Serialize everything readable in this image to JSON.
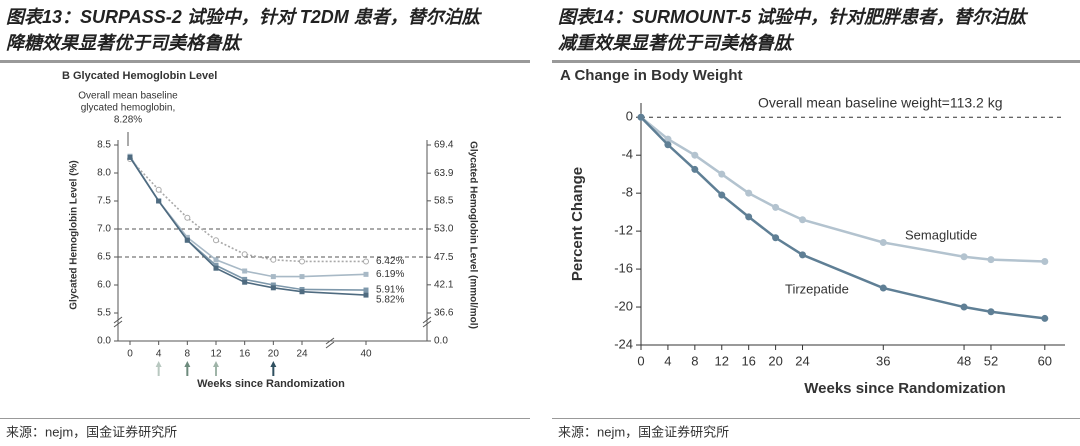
{
  "chart_data": [
    {
      "type": "line",
      "figure_title": [
        "图表13：SURPASS-2 试验中，针对 T2DM 患者，替尔泊肽",
        "降糖效果显著优于司美格鲁肽"
      ],
      "title": "B  Glycated Hemoglobin Level",
      "annotation": [
        "Overall mean baseline",
        "glycated hemoglobin,",
        "8.28%"
      ],
      "xlabel": "Weeks since Randomization",
      "ylabel": "Glycated Hemoglobin Level (%)",
      "y2label": "Glycated Hemoglobin Level (mmol/mol)",
      "source": "来源：nejm，国金证券研究所",
      "x": [
        0,
        4,
        8,
        12,
        16,
        20,
        24,
        40
      ],
      "xticks": [
        0,
        4,
        8,
        12,
        16,
        20,
        24,
        40
      ],
      "ylim": [
        5.5,
        8.5
      ],
      "yticks": [
        8.5,
        {
          "value": 8.0,
          "label": "8.0"
        },
        7.5,
        {
          "value": 7.0,
          "label": "7.0"
        },
        6.5,
        {
          "value": 6.0,
          "label": "6.0"
        },
        5.5
      ],
      "y_break_tick": {
        "value": 0,
        "label": "0.0"
      },
      "y2lim": [
        36.6,
        69.4
      ],
      "y2ticks": [
        69.4,
        63.9,
        58.5,
        {
          "value": 53.0,
          "label": "53.0"
        },
        47.5,
        42.1,
        36.6
      ],
      "y2_break_tick": {
        "value": 0,
        "label": "0.0"
      },
      "hlines": [
        {
          "value": 7.0,
          "label": "7.0"
        },
        6.5
      ],
      "dose_arrows": [
        4,
        8,
        12,
        20
      ],
      "series": [
        {
          "color": "#a9a9a9",
          "dash": true,
          "marker": "circle",
          "values": [
            8.25,
            7.7,
            7.2,
            6.8,
            6.55,
            6.45,
            6.42,
            6.42
          ],
          "value_labels": [
            null,
            null,
            null,
            null,
            null,
            null,
            null,
            "6.42%"
          ]
        },
        {
          "color": "#a8b9c6",
          "marker": "square",
          "values": [
            8.3,
            7.5,
            6.85,
            6.45,
            6.25,
            6.15,
            6.15,
            6.19
          ],
          "value_labels": [
            null,
            null,
            null,
            null,
            null,
            null,
            null,
            "6.19%"
          ]
        },
        {
          "color": "#7e98ab",
          "marker": "square",
          "values": [
            8.28,
            7.5,
            6.8,
            6.35,
            6.1,
            6.0,
            5.92,
            5.91
          ],
          "value_labels": [
            null,
            null,
            null,
            null,
            null,
            null,
            null,
            "5.91%"
          ]
        },
        {
          "color": "#4f6b80",
          "marker": "square",
          "values": [
            8.28,
            7.5,
            6.8,
            6.3,
            6.05,
            5.95,
            5.88,
            5.82
          ],
          "value_labels": [
            null,
            null,
            null,
            null,
            null,
            null,
            null,
            "5.82%"
          ]
        }
      ]
    },
    {
      "type": "line",
      "figure_title": [
        "图表14：SURMOUNT-5 试验中，针对肥胖患者，替尔泊肽",
        "减重效果显著优于司美格鲁肽"
      ],
      "title": "A  Change in Body Weight",
      "annotation": [
        "Overall mean baseline weight=113.2 kg"
      ],
      "xlabel": "Weeks since Randomization",
      "ylabel": "Percent Change",
      "source": "来源：nejm，国金证券研究所",
      "x": [
        0,
        4,
        8,
        12,
        16,
        20,
        24,
        36,
        48,
        52,
        60
      ],
      "xlim": [
        0,
        63
      ],
      "xticks": [
        0,
        4,
        8,
        12,
        16,
        20,
        24,
        36,
        48,
        52,
        60
      ],
      "ylim": [
        -24,
        1.5
      ],
      "yticks": [
        0,
        -4,
        -8,
        -12,
        -16,
        -20,
        -24
      ],
      "hlines": [
        0
      ],
      "series": [
        {
          "name": "Semaglutide",
          "color": "#b3c3cf",
          "marker": "circle",
          "values": [
            0,
            -2.3,
            -4,
            -6,
            -8,
            -9.5,
            -10.8,
            -13.2,
            -14.7,
            -15,
            -15.2
          ]
        },
        {
          "name": "Tirzepatide",
          "color": "#5f7f95",
          "marker": "circle",
          "values": [
            0,
            -2.9,
            -5.5,
            -8.2,
            -10.5,
            -12.7,
            -14.5,
            -18,
            -20,
            -20.5,
            -21.2
          ]
        }
      ]
    }
  ]
}
